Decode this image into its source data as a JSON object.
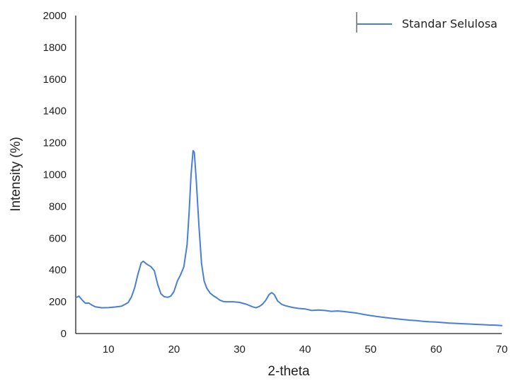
{
  "chart_data": {
    "type": "line",
    "title": "",
    "xlabel": "2-theta",
    "ylabel": "Intensity (%)",
    "xlim": [
      5,
      70
    ],
    "ylim": [
      0,
      2000
    ],
    "x_ticks": [
      10,
      20,
      30,
      40,
      50,
      60,
      70
    ],
    "y_ticks": [
      0,
      200,
      400,
      600,
      800,
      1000,
      1200,
      1400,
      1600,
      1800,
      2000
    ],
    "grid": false,
    "legend_position": "top-right",
    "series": [
      {
        "name": "Standar Selulosa",
        "color": "#4a7fd6",
        "points": [
          [
            5.0,
            225
          ],
          [
            5.5,
            235
          ],
          [
            6.0,
            210
          ],
          [
            6.5,
            190
          ],
          [
            7.0,
            192
          ],
          [
            7.5,
            178
          ],
          [
            8.0,
            168
          ],
          [
            9.0,
            162
          ],
          [
            10.0,
            163
          ],
          [
            11.0,
            167
          ],
          [
            12.0,
            172
          ],
          [
            13.0,
            195
          ],
          [
            13.5,
            230
          ],
          [
            14.0,
            290
          ],
          [
            14.5,
            375
          ],
          [
            15.0,
            445
          ],
          [
            15.3,
            455
          ],
          [
            15.8,
            438
          ],
          [
            16.5,
            420
          ],
          [
            17.0,
            395
          ],
          [
            17.5,
            310
          ],
          [
            18.0,
            250
          ],
          [
            18.5,
            232
          ],
          [
            19.0,
            228
          ],
          [
            19.5,
            235
          ],
          [
            20.0,
            265
          ],
          [
            20.5,
            330
          ],
          [
            21.0,
            370
          ],
          [
            21.5,
            420
          ],
          [
            22.0,
            560
          ],
          [
            22.3,
            760
          ],
          [
            22.6,
            1000
          ],
          [
            22.9,
            1150
          ],
          [
            23.1,
            1140
          ],
          [
            23.4,
            960
          ],
          [
            23.8,
            680
          ],
          [
            24.2,
            440
          ],
          [
            24.6,
            330
          ],
          [
            25.0,
            285
          ],
          [
            25.5,
            255
          ],
          [
            26.0,
            238
          ],
          [
            26.5,
            225
          ],
          [
            27.0,
            210
          ],
          [
            27.5,
            202
          ],
          [
            28.0,
            200
          ],
          [
            29.0,
            200
          ],
          [
            30.0,
            196
          ],
          [
            31.0,
            185
          ],
          [
            32.0,
            168
          ],
          [
            32.5,
            162
          ],
          [
            33.0,
            170
          ],
          [
            33.5,
            185
          ],
          [
            34.0,
            210
          ],
          [
            34.5,
            245
          ],
          [
            34.9,
            258
          ],
          [
            35.3,
            245
          ],
          [
            35.8,
            205
          ],
          [
            36.5,
            182
          ],
          [
            37.0,
            175
          ],
          [
            38.0,
            165
          ],
          [
            39.0,
            158
          ],
          [
            40.0,
            155
          ],
          [
            41.0,
            145
          ],
          [
            42.0,
            148
          ],
          [
            43.0,
            145
          ],
          [
            44.0,
            140
          ],
          [
            45.0,
            142
          ],
          [
            46.0,
            138
          ],
          [
            47.0,
            133
          ],
          [
            48.0,
            128
          ],
          [
            49.0,
            120
          ],
          [
            50.0,
            113
          ],
          [
            51.0,
            107
          ],
          [
            52.0,
            102
          ],
          [
            53.0,
            97
          ],
          [
            54.0,
            92
          ],
          [
            55.0,
            88
          ],
          [
            56.0,
            84
          ],
          [
            57.0,
            81
          ],
          [
            58.0,
            77
          ],
          [
            59.0,
            74
          ],
          [
            60.0,
            72
          ],
          [
            61.0,
            69
          ],
          [
            62.0,
            66
          ],
          [
            63.0,
            64
          ],
          [
            64.0,
            62
          ],
          [
            65.0,
            60
          ],
          [
            66.0,
            58
          ],
          [
            67.0,
            56
          ],
          [
            68.0,
            54
          ],
          [
            69.0,
            53
          ],
          [
            70.0,
            50
          ]
        ]
      }
    ]
  }
}
